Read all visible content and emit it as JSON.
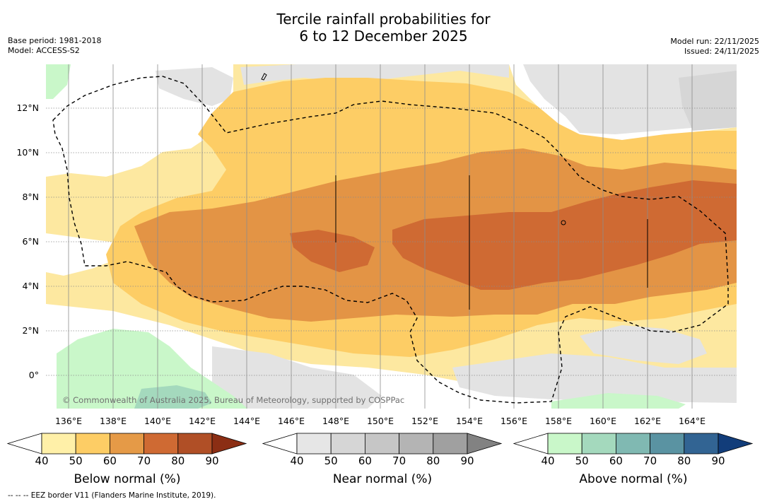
{
  "title": {
    "line1": "Tercile rainfall probabilities for",
    "line2": "6 to 12 December 2025"
  },
  "meta_left": {
    "base_period": "Base period: 1981-2018",
    "model": "Model: ACCESS-S2"
  },
  "meta_right": {
    "model_run": "Model run: 22/11/2025",
    "issued": "Issued: 24/11/2025"
  },
  "map": {
    "lat_labels": [
      "12°N",
      "10°N",
      "8°N",
      "6°N",
      "4°N",
      "2°N",
      "0°"
    ],
    "lon_labels": [
      "136°E",
      "138°E",
      "140°E",
      "142°E",
      "144°E",
      "146°E",
      "148°E",
      "150°E",
      "152°E",
      "154°E",
      "156°E",
      "158°E",
      "160°E",
      "162°E",
      "164°E"
    ],
    "credit": "© Commonwealth of Australia 2025, Bureau of Meteorology, supported by COSPPac"
  },
  "colorbars": [
    {
      "label": "Below normal (%)",
      "ticks": [
        "40",
        "50",
        "60",
        "70",
        "80",
        "90"
      ],
      "colors": [
        "#fff0a8",
        "#fdcd65",
        "#e59a47",
        "#cf6a33",
        "#b04f26",
        "#8b2e14"
      ]
    },
    {
      "label": "Near normal (%)",
      "ticks": [
        "40",
        "50",
        "60",
        "70",
        "80",
        "90"
      ],
      "colors": [
        "#e6e6e6",
        "#d6d6d6",
        "#c6c6c6",
        "#b4b4b4",
        "#a0a0a0",
        "#828282"
      ]
    },
    {
      "label": "Above normal (%)",
      "ticks": [
        "40",
        "50",
        "60",
        "70",
        "80",
        "90"
      ],
      "colors": [
        "#c9f7c9",
        "#a4d9bd",
        "#80b9b2",
        "#5a93a2",
        "#326493",
        "#123d7a"
      ]
    }
  ],
  "footnote": "-- -- -- EEZ border V11 (Flanders Marine Institute, 2019)."
}
